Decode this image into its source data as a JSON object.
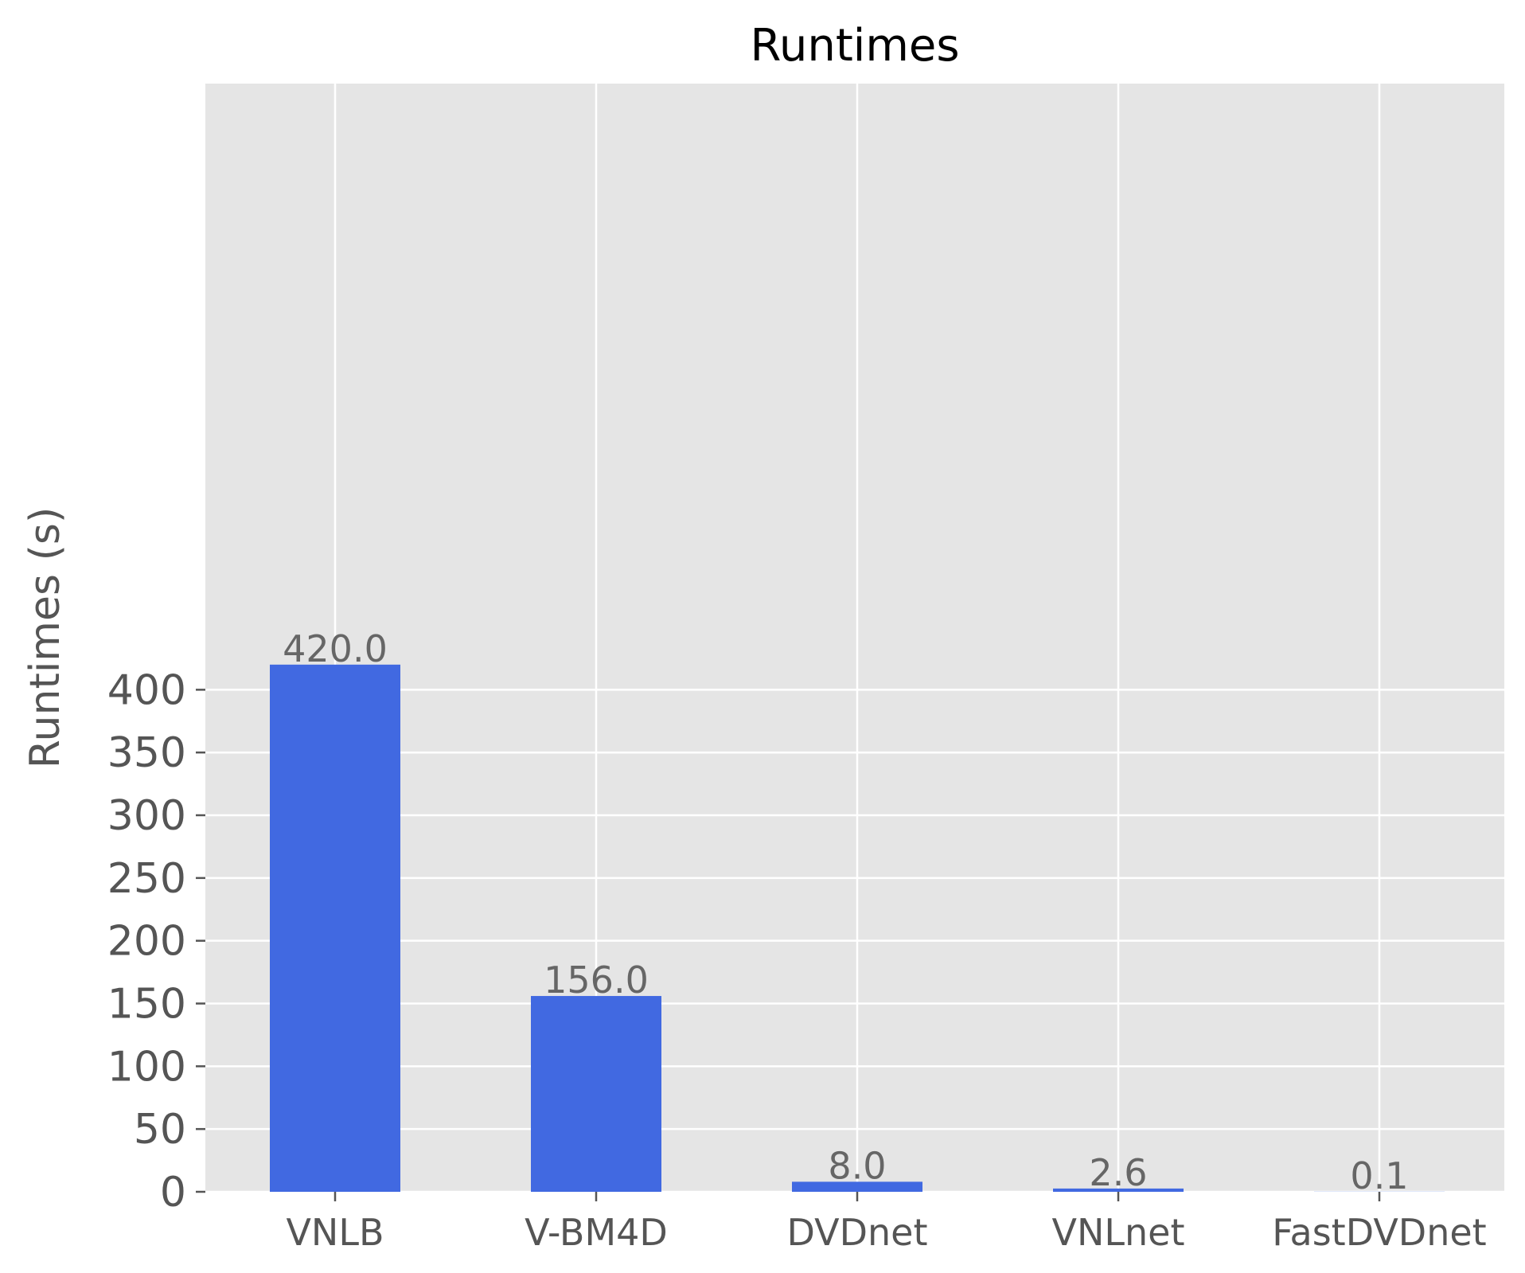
{
  "chart_data": {
    "type": "bar",
    "title": "Runtimes",
    "xlabel": "",
    "ylabel": "Runtimes (s)",
    "categories": [
      "VNLB",
      "V-BM4D",
      "DVDnet",
      "VNLnet",
      "FastDVDnet"
    ],
    "values": [
      420.0,
      156.0,
      8.0,
      2.6,
      0.1
    ],
    "value_labels": [
      "420.0",
      "156.0",
      "8.0",
      "2.6",
      "0.1"
    ],
    "yticks": [
      0,
      50,
      100,
      150,
      200,
      250,
      300,
      350,
      400
    ],
    "ytick_labels": [
      "0",
      "50",
      "100",
      "150",
      "200",
      "250",
      "300",
      "350",
      "400"
    ],
    "ylim": [
      0,
      440
    ],
    "grid": true,
    "colors": {
      "bar": "#4169e1",
      "plot_background": "#e5e5e5",
      "grid": "#ffffff",
      "tick": "#555555"
    }
  }
}
